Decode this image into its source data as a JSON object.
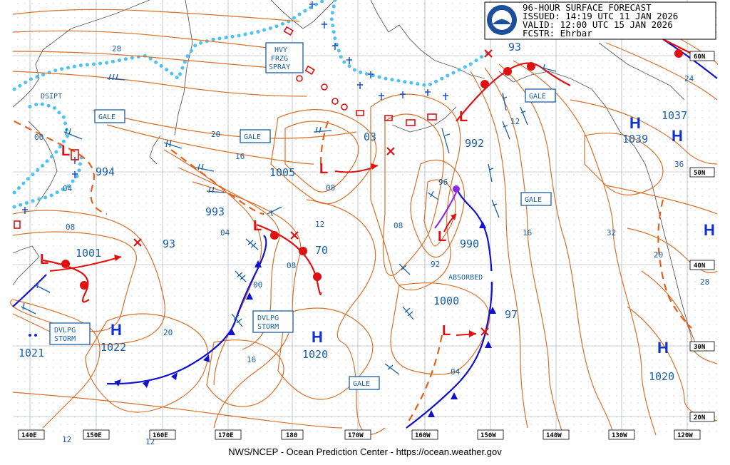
{
  "header": {
    "line1": "96-HOUR SURFACE FORECAST",
    "line2": "ISSUED: 14:19 UTC 11 JAN 2026",
    "line3": "VALID:  12:00 UTC 15 JAN 2026",
    "line4": "FCSTR:  Ehrbar",
    "logo_text": "NOAA"
  },
  "footer": "NWS/NCEP - Ocean Prediction Center - https://ocean.weather.gov",
  "colors": {
    "isobar": "#d8702a",
    "warm_front": "#e01010",
    "cold_front": "#1010d0",
    "ice_accretion": "#4fc3f0",
    "label_text": "#1a5fa6",
    "high_low": "#1133cc",
    "low_symbol": "#e01010",
    "occluded": "#8a2be2"
  },
  "lon_labels": [
    "140E",
    "150E",
    "160E",
    "170E",
    "180",
    "170W",
    "160W",
    "150W",
    "140W",
    "130W",
    "120W"
  ],
  "lat_labels": [
    "60N",
    "50N",
    "40N",
    "30N",
    "20N"
  ],
  "highs": [
    {
      "symbol": "H",
      "pressure": "1022"
    },
    {
      "symbol": "H",
      "pressure": "1020"
    },
    {
      "symbol": "H",
      "pressure": "1039"
    },
    {
      "symbol": "H",
      "pressure": "1037"
    },
    {
      "symbol": "H",
      "pressure": "1020"
    },
    {
      "symbol": "H",
      "pressure": ""
    },
    {
      "symbol": "H",
      "pressure": "1021"
    }
  ],
  "lows": [
    {
      "pressure": "994"
    },
    {
      "pressure": "1005"
    },
    {
      "pressure": "992"
    },
    {
      "pressure": "990"
    },
    {
      "pressure": "993"
    },
    {
      "pressure": "1001"
    },
    {
      "pressure": "1000"
    }
  ],
  "dissipated_low_labels": [
    "03",
    "93",
    "70",
    "97",
    "93"
  ],
  "box_labels": {
    "gale_1": "GALE",
    "gale_2": "GALE",
    "gale_3": "GALE",
    "gale_4": "GALE",
    "gale_5": "GALE",
    "hvy_frzg_spray": [
      "HVY",
      "FRZG",
      "SPRAY"
    ],
    "dvlpg_storm_1": [
      "DVLPG",
      "STORM"
    ],
    "dvlpg_storm_2": [
      "DVLPG",
      "STORM"
    ],
    "dsipt": "DSIPT",
    "absorbed": "ABSORBED"
  },
  "isobar_labels": [
    "28",
    "20",
    "16",
    "00",
    "04",
    "08",
    "12",
    "08",
    "08",
    "04",
    "00",
    "08",
    "96",
    "92",
    "12",
    "16",
    "32",
    "20",
    "36",
    "24",
    "28",
    "20",
    "16",
    "04",
    "12",
    "12"
  ]
}
